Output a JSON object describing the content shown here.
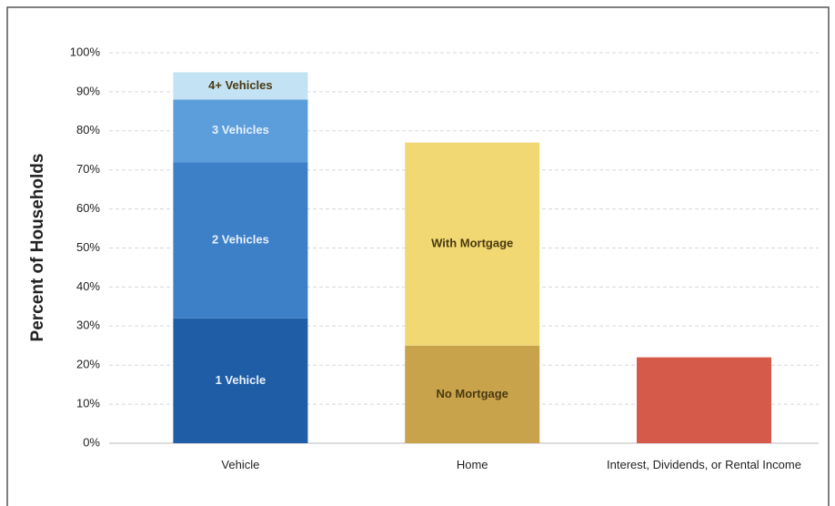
{
  "chart_data": {
    "type": "stacked_bar",
    "y_label": "Percent of Households",
    "categories": [
      "Vehicle",
      "Home",
      "Interest, Dividends, or Rental Income"
    ],
    "series": [
      {
        "name": "1 Vehicle",
        "color": "#1f5ea6",
        "values": [
          32,
          null,
          null
        ]
      },
      {
        "name": "2 Vehicles",
        "color": "#3d80c8",
        "values": [
          40,
          null,
          null
        ]
      },
      {
        "name": "3 Vehicles",
        "color": "#5b9edb",
        "values": [
          16,
          null,
          null
        ]
      },
      {
        "name": "4+ Vehicles",
        "color": "#c3e2f4",
        "values": [
          7,
          null,
          null
        ]
      },
      {
        "name": "No Mortgage",
        "color": "#c9a24c",
        "values": [
          null,
          25,
          null
        ]
      },
      {
        "name": "With Mortgage",
        "color": "#f1d873",
        "values": [
          null,
          52,
          null
        ]
      },
      {
        "color": "#d65a4a",
        "values": [
          null,
          null,
          22
        ]
      }
    ],
    "ylim": [
      0,
      100
    ],
    "yticks": [
      {
        "value": 0,
        "label": "0%"
      },
      {
        "value": 10,
        "label": "10%"
      },
      {
        "value": 20,
        "label": "20%"
      },
      {
        "value": 30,
        "label": "30%"
      },
      {
        "value": 40,
        "label": "40%"
      },
      {
        "value": 50,
        "label": "50%"
      },
      {
        "value": 60,
        "label": "60%"
      },
      {
        "value": 70,
        "label": "70%"
      },
      {
        "value": 80,
        "label": "80%"
      },
      {
        "value": 90,
        "label": "90%"
      },
      {
        "value": 100,
        "label": "100%"
      }
    ],
    "grid": true
  }
}
